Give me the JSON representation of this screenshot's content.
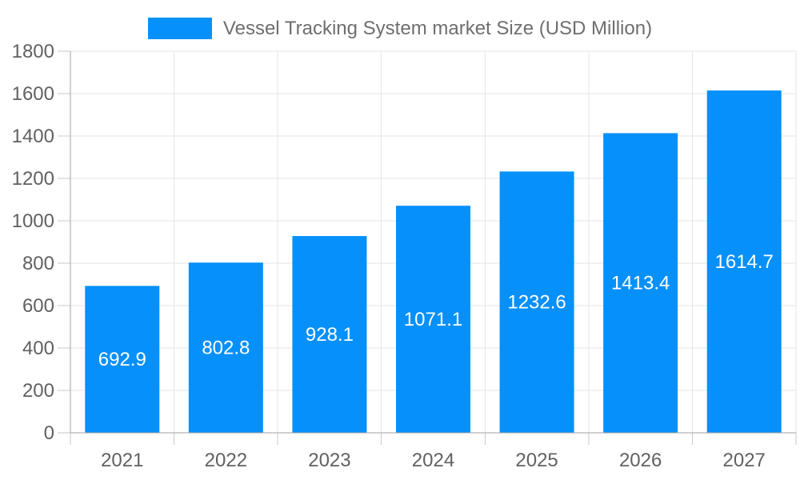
{
  "chart_data": {
    "type": "bar",
    "title": "Vessel Tracking System market Size (USD Million)",
    "legend_position": "top",
    "categories": [
      "2021",
      "2022",
      "2023",
      "2024",
      "2025",
      "2026",
      "2027"
    ],
    "values": [
      692.9,
      802.8,
      928.1,
      1071.1,
      1232.6,
      1413.4,
      1614.7
    ],
    "xlabel": "",
    "ylabel": "",
    "ylim": [
      0,
      1800
    ],
    "ytick_step": 200,
    "grid": true,
    "bar_color": "#0690fa",
    "data_label_color": "#ffffff",
    "axis_label_color": "#616161",
    "legend_text_color": "#6e6e6e",
    "grid_color": "#e6e6e6",
    "axis_line_color": "#a0a0a0",
    "tick_color": "#c9c9c9"
  }
}
